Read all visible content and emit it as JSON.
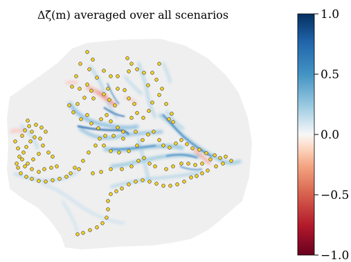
{
  "chart_data": {
    "type": "heatmap",
    "title": "Δζ̄(m) averaged over all scenarios",
    "colorbar": {
      "cmap": "RdBu",
      "range": [
        -1.0,
        1.0
      ],
      "ticks": [
        1.0,
        0.5,
        0.0,
        -0.5,
        -1.0
      ],
      "tick_labels": [
        "1.0",
        "0.5",
        "0.0",
        "−0.5",
        "−1.0"
      ]
    },
    "markers": {
      "description": "gauge locations",
      "fill_color": "#f5d21e",
      "edge_color": "#3a3a3a",
      "count": 165
    },
    "colors": {
      "domain_background": "#efefef",
      "positive_strong": "#1c5ea8",
      "positive_light": "#8ec0e0",
      "negative_light": "#f2b8b0"
    }
  }
}
